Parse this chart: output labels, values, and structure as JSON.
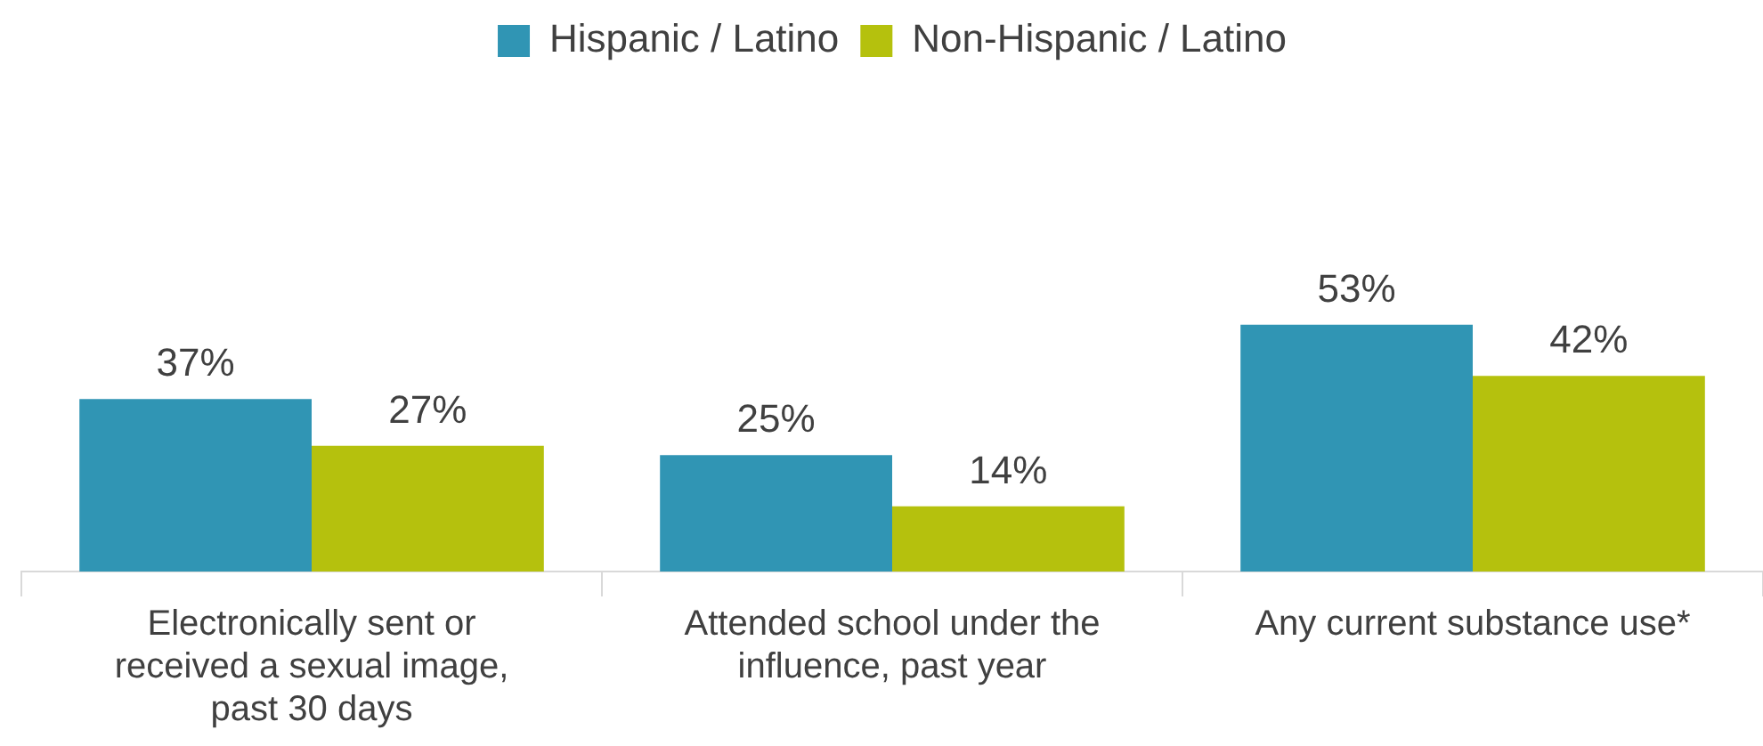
{
  "chart_data": {
    "type": "bar",
    "categories": [
      "Electronically sent or received a sexual image, past 30 days",
      "Attended school under the influence, past year",
      "Any current substance use*"
    ],
    "series": [
      {
        "name": "Hispanic / Latino",
        "color": "#3095b4",
        "values": [
          37,
          25,
          53
        ],
        "value_labels": [
          "37%",
          "25%",
          "53%"
        ]
      },
      {
        "name": "Non-Hispanic / Latino",
        "color": "#b5c10d",
        "values": [
          27,
          14,
          42
        ],
        "value_labels": [
          "27%",
          "14%",
          "42%"
        ]
      }
    ],
    "legend": "top",
    "grid": false
  }
}
